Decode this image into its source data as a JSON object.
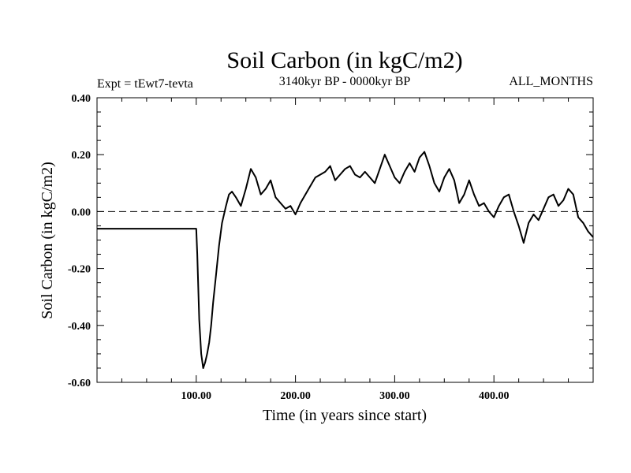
{
  "chart_data": {
    "type": "line",
    "title": "Soil Carbon (in kgC/m2)",
    "subtitle": "3140kyr BP - 0000kyr BP",
    "expt_label": "Expt = tEwt7-tevta",
    "months_label": "ALL_MONTHS",
    "xlabel": "Time (in years since start)",
    "ylabel": "Soil Carbon (in kgC/m2)",
    "xlim": [
      0,
      500
    ],
    "ylim": [
      -0.6,
      0.4
    ],
    "x_ticks": [
      100,
      200,
      300,
      400
    ],
    "x_tick_labels": [
      "100.00",
      "200.00",
      "300.00",
      "400.00"
    ],
    "y_ticks": [
      -0.6,
      -0.4,
      -0.2,
      0.0,
      0.2,
      0.4
    ],
    "y_tick_labels": [
      "-0.60",
      "-0.40",
      "-0.20",
      "0.00",
      "0.20",
      "0.40"
    ],
    "reference_line": 0.0,
    "series": [
      {
        "name": "Soil Carbon",
        "x": [
          0,
          100,
          101,
          103,
          105,
          107,
          109,
          111,
          113,
          115,
          117,
          120,
          123,
          126,
          130,
          133,
          136,
          140,
          145,
          150,
          155,
          160,
          165,
          170,
          175,
          180,
          185,
          190,
          195,
          200,
          205,
          210,
          215,
          220,
          225,
          230,
          235,
          240,
          245,
          250,
          255,
          260,
          265,
          270,
          275,
          280,
          285,
          290,
          295,
          300,
          305,
          310,
          315,
          320,
          325,
          330,
          335,
          340,
          345,
          350,
          355,
          360,
          365,
          370,
          375,
          380,
          385,
          390,
          395,
          400,
          405,
          410,
          415,
          420,
          425,
          430,
          435,
          440,
          445,
          450,
          455,
          460,
          465,
          470,
          475,
          480,
          485,
          490,
          495,
          500
        ],
        "values": [
          -0.06,
          -0.06,
          -0.15,
          -0.38,
          -0.5,
          -0.55,
          -0.53,
          -0.5,
          -0.46,
          -0.4,
          -0.32,
          -0.22,
          -0.12,
          -0.04,
          0.02,
          0.06,
          0.07,
          0.05,
          0.02,
          0.08,
          0.15,
          0.12,
          0.06,
          0.08,
          0.11,
          0.05,
          0.03,
          0.01,
          0.02,
          -0.01,
          0.03,
          0.06,
          0.09,
          0.12,
          0.13,
          0.14,
          0.16,
          0.11,
          0.13,
          0.15,
          0.16,
          0.13,
          0.12,
          0.14,
          0.12,
          0.1,
          0.15,
          0.2,
          0.16,
          0.12,
          0.1,
          0.14,
          0.17,
          0.14,
          0.19,
          0.21,
          0.16,
          0.1,
          0.07,
          0.12,
          0.15,
          0.11,
          0.03,
          0.06,
          0.11,
          0.06,
          0.02,
          0.03,
          0.0,
          -0.02,
          0.02,
          0.05,
          0.06,
          0.0,
          -0.05,
          -0.11,
          -0.04,
          -0.01,
          -0.03,
          0.01,
          0.05,
          0.06,
          0.02,
          0.04,
          0.08,
          0.06,
          -0.02,
          -0.04,
          -0.07,
          -0.09
        ]
      }
    ]
  }
}
